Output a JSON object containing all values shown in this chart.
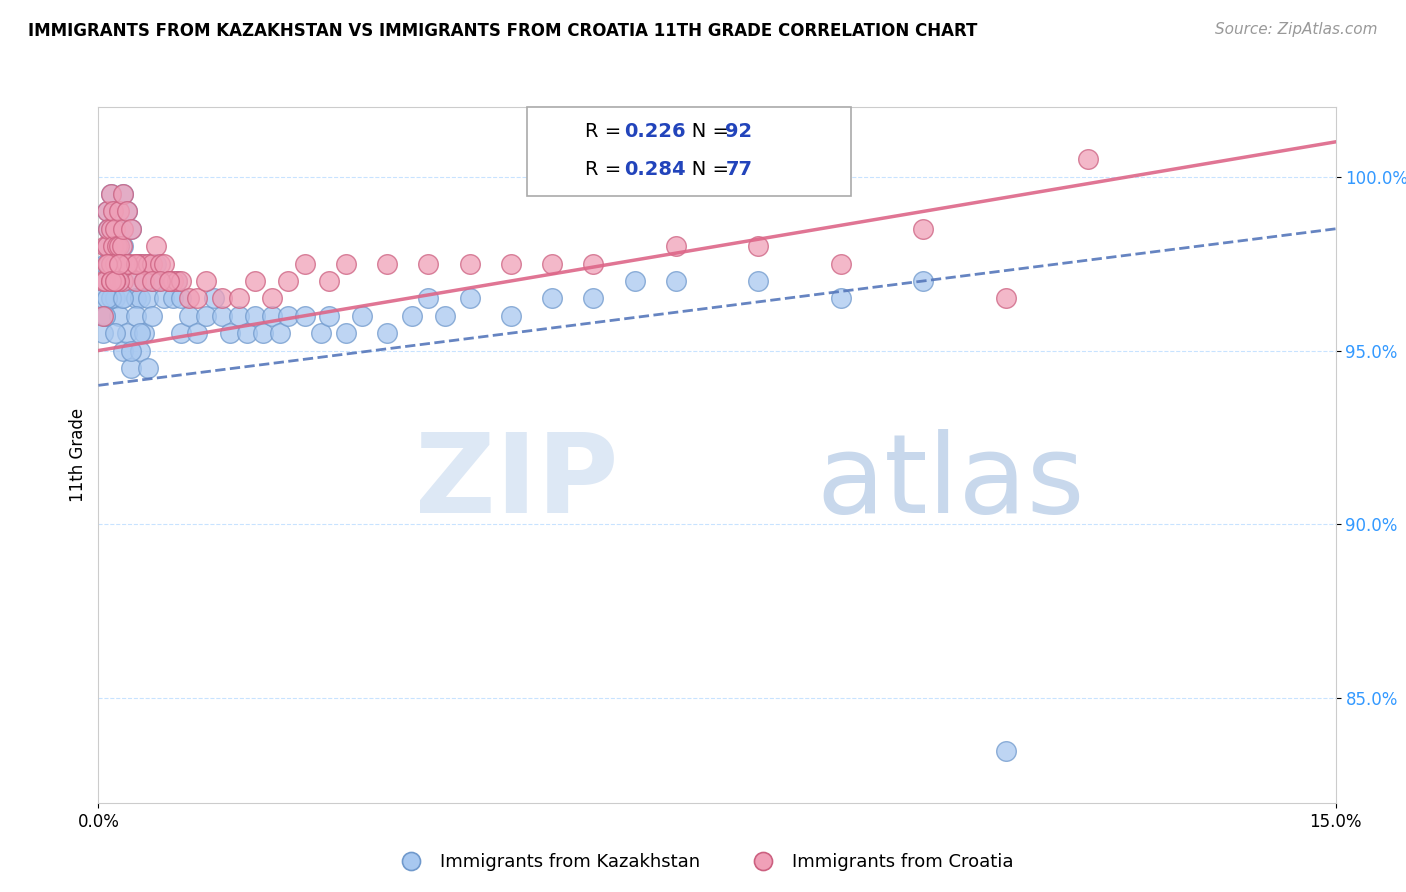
{
  "title": "IMMIGRANTS FROM KAZAKHSTAN VS IMMIGRANTS FROM CROATIA 11TH GRADE CORRELATION CHART",
  "source": "Source: ZipAtlas.com",
  "ylabel": "11th Grade",
  "x_min": 0.0,
  "x_max": 15.0,
  "y_min": 82.0,
  "y_max": 102.0,
  "kazakh_R": 0.226,
  "kazakh_N": 92,
  "croatia_R": 0.284,
  "croatia_N": 77,
  "kazakh_color": "#A8C8F0",
  "croatia_color": "#F0A0B8",
  "kazakh_edge": "#7099CC",
  "croatia_edge": "#CC6080",
  "trend_kazakh_color": "#5577BB",
  "trend_croatia_color": "#DD6688",
  "watermark_zip": "ZIP",
  "watermark_atlas": "atlas",
  "legend_color": "#2244BB",
  "kazakh_scatter_x": [
    0.05,
    0.05,
    0.08,
    0.08,
    0.1,
    0.1,
    0.1,
    0.12,
    0.12,
    0.15,
    0.15,
    0.15,
    0.18,
    0.18,
    0.2,
    0.2,
    0.2,
    0.22,
    0.22,
    0.25,
    0.25,
    0.28,
    0.28,
    0.3,
    0.3,
    0.35,
    0.35,
    0.4,
    0.4,
    0.45,
    0.5,
    0.5,
    0.55,
    0.6,
    0.6,
    0.65,
    0.7,
    0.75,
    0.8,
    0.85,
    0.9,
    0.95,
    1.0,
    1.0,
    1.1,
    1.2,
    1.3,
    1.4,
    1.5,
    1.6,
    1.7,
    1.8,
    1.9,
    2.0,
    2.1,
    2.2,
    2.3,
    2.5,
    2.7,
    2.8,
    3.0,
    3.2,
    3.5,
    3.8,
    4.0,
    4.2,
    4.5,
    5.0,
    5.5,
    6.0,
    6.5,
    7.0,
    8.0,
    9.0,
    10.0,
    11.0,
    0.3,
    0.4,
    0.5,
    0.6,
    0.25,
    0.35,
    0.45,
    0.55,
    0.65,
    0.15,
    0.2,
    0.1,
    0.08,
    0.3,
    0.4,
    0.5
  ],
  "kazakh_scatter_y": [
    96.5,
    95.5,
    97.5,
    96.0,
    99.0,
    98.0,
    97.0,
    98.5,
    97.5,
    99.5,
    98.5,
    97.5,
    99.0,
    98.0,
    98.5,
    97.5,
    96.5,
    98.0,
    97.0,
    98.5,
    97.5,
    97.5,
    96.5,
    99.5,
    98.0,
    99.0,
    97.5,
    98.5,
    97.0,
    96.5,
    97.5,
    96.5,
    97.0,
    97.5,
    96.5,
    97.0,
    97.5,
    97.0,
    96.5,
    97.0,
    96.5,
    97.0,
    96.5,
    95.5,
    96.0,
    95.5,
    96.0,
    96.5,
    96.0,
    95.5,
    96.0,
    95.5,
    96.0,
    95.5,
    96.0,
    95.5,
    96.0,
    96.0,
    95.5,
    96.0,
    95.5,
    96.0,
    95.5,
    96.0,
    96.5,
    96.0,
    96.5,
    96.0,
    96.5,
    96.5,
    97.0,
    97.0,
    97.0,
    96.5,
    97.0,
    83.5,
    95.0,
    94.5,
    95.0,
    94.5,
    96.0,
    95.5,
    96.0,
    95.5,
    96.0,
    96.5,
    95.5,
    96.5,
    96.0,
    96.5,
    95.0,
    95.5
  ],
  "croatia_scatter_x": [
    0.05,
    0.05,
    0.08,
    0.08,
    0.1,
    0.1,
    0.12,
    0.12,
    0.15,
    0.15,
    0.18,
    0.18,
    0.2,
    0.2,
    0.22,
    0.25,
    0.25,
    0.28,
    0.3,
    0.3,
    0.35,
    0.4,
    0.4,
    0.45,
    0.5,
    0.55,
    0.6,
    0.65,
    0.7,
    0.75,
    0.8,
    0.85,
    0.9,
    0.95,
    1.0,
    1.1,
    1.2,
    1.3,
    1.5,
    1.7,
    1.9,
    2.1,
    2.3,
    2.5,
    2.8,
    3.0,
    3.5,
    4.0,
    4.5,
    5.0,
    5.5,
    6.0,
    7.0,
    8.0,
    9.0,
    10.0,
    11.0,
    12.0,
    0.15,
    0.2,
    0.25,
    0.3,
    0.35,
    0.45,
    0.55,
    0.65,
    0.75,
    0.85,
    0.35,
    0.45,
    0.25,
    0.15,
    0.2,
    0.1,
    0.15,
    0.2,
    0.25
  ],
  "croatia_scatter_y": [
    97.0,
    96.0,
    98.0,
    97.0,
    99.0,
    98.0,
    98.5,
    97.5,
    99.5,
    98.5,
    99.0,
    98.0,
    98.5,
    97.5,
    98.0,
    99.0,
    98.0,
    98.0,
    99.5,
    98.5,
    99.0,
    98.5,
    97.5,
    97.5,
    97.5,
    97.5,
    97.5,
    97.5,
    98.0,
    97.5,
    97.5,
    97.0,
    97.0,
    97.0,
    97.0,
    96.5,
    96.5,
    97.0,
    96.5,
    96.5,
    97.0,
    96.5,
    97.0,
    97.5,
    97.0,
    97.5,
    97.5,
    97.5,
    97.5,
    97.5,
    97.5,
    97.5,
    98.0,
    98.0,
    97.5,
    98.5,
    96.5,
    100.5,
    97.0,
    97.0,
    97.5,
    97.0,
    97.5,
    97.0,
    97.0,
    97.0,
    97.0,
    97.0,
    97.5,
    97.5,
    97.0,
    97.5,
    97.0,
    97.5,
    97.0,
    97.0,
    97.5
  ]
}
